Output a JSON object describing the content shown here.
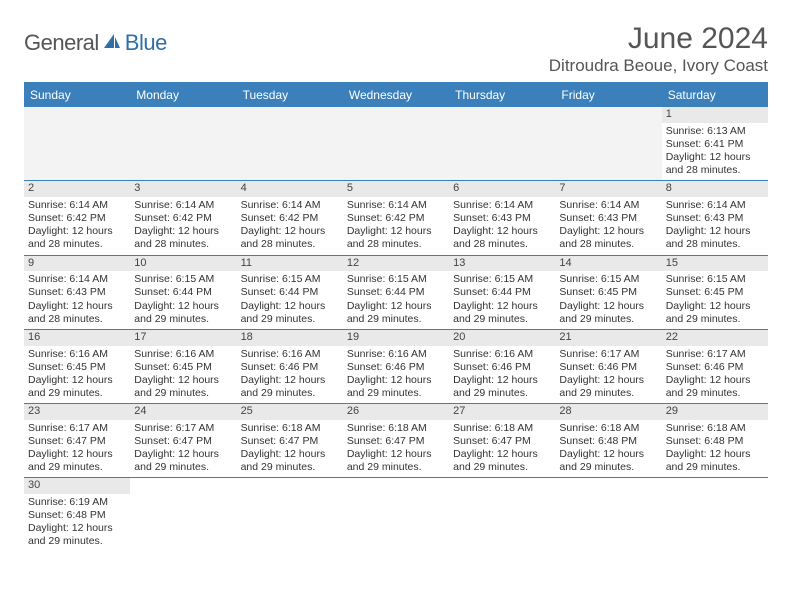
{
  "logo": {
    "part1": "General",
    "part2": "Blue"
  },
  "title": "June 2024",
  "location": "Ditroudra Beoue, Ivory Coast",
  "day_headers": [
    "Sunday",
    "Monday",
    "Tuesday",
    "Wednesday",
    "Thursday",
    "Friday",
    "Saturday"
  ],
  "colors": {
    "brand_blue": "#3b7fbb",
    "logo_blue": "#2f6fa8",
    "logo_grey": "#555555",
    "daynum_bg": "#e9e9e9",
    "blank_bg": "#f3f3f3",
    "text": "#333333"
  },
  "grid": {
    "rows": 6,
    "cols": 7,
    "first_day_index": 6,
    "days_in_month": 30
  },
  "days": {
    "1": {
      "sunrise": "6:13 AM",
      "sunset": "6:41 PM",
      "daylight": "12 hours and 28 minutes."
    },
    "2": {
      "sunrise": "6:14 AM",
      "sunset": "6:42 PM",
      "daylight": "12 hours and 28 minutes."
    },
    "3": {
      "sunrise": "6:14 AM",
      "sunset": "6:42 PM",
      "daylight": "12 hours and 28 minutes."
    },
    "4": {
      "sunrise": "6:14 AM",
      "sunset": "6:42 PM",
      "daylight": "12 hours and 28 minutes."
    },
    "5": {
      "sunrise": "6:14 AM",
      "sunset": "6:42 PM",
      "daylight": "12 hours and 28 minutes."
    },
    "6": {
      "sunrise": "6:14 AM",
      "sunset": "6:43 PM",
      "daylight": "12 hours and 28 minutes."
    },
    "7": {
      "sunrise": "6:14 AM",
      "sunset": "6:43 PM",
      "daylight": "12 hours and 28 minutes."
    },
    "8": {
      "sunrise": "6:14 AM",
      "sunset": "6:43 PM",
      "daylight": "12 hours and 28 minutes."
    },
    "9": {
      "sunrise": "6:14 AM",
      "sunset": "6:43 PM",
      "daylight": "12 hours and 28 minutes."
    },
    "10": {
      "sunrise": "6:15 AM",
      "sunset": "6:44 PM",
      "daylight": "12 hours and 29 minutes."
    },
    "11": {
      "sunrise": "6:15 AM",
      "sunset": "6:44 PM",
      "daylight": "12 hours and 29 minutes."
    },
    "12": {
      "sunrise": "6:15 AM",
      "sunset": "6:44 PM",
      "daylight": "12 hours and 29 minutes."
    },
    "13": {
      "sunrise": "6:15 AM",
      "sunset": "6:44 PM",
      "daylight": "12 hours and 29 minutes."
    },
    "14": {
      "sunrise": "6:15 AM",
      "sunset": "6:45 PM",
      "daylight": "12 hours and 29 minutes."
    },
    "15": {
      "sunrise": "6:15 AM",
      "sunset": "6:45 PM",
      "daylight": "12 hours and 29 minutes."
    },
    "16": {
      "sunrise": "6:16 AM",
      "sunset": "6:45 PM",
      "daylight": "12 hours and 29 minutes."
    },
    "17": {
      "sunrise": "6:16 AM",
      "sunset": "6:45 PM",
      "daylight": "12 hours and 29 minutes."
    },
    "18": {
      "sunrise": "6:16 AM",
      "sunset": "6:46 PM",
      "daylight": "12 hours and 29 minutes."
    },
    "19": {
      "sunrise": "6:16 AM",
      "sunset": "6:46 PM",
      "daylight": "12 hours and 29 minutes."
    },
    "20": {
      "sunrise": "6:16 AM",
      "sunset": "6:46 PM",
      "daylight": "12 hours and 29 minutes."
    },
    "21": {
      "sunrise": "6:17 AM",
      "sunset": "6:46 PM",
      "daylight": "12 hours and 29 minutes."
    },
    "22": {
      "sunrise": "6:17 AM",
      "sunset": "6:46 PM",
      "daylight": "12 hours and 29 minutes."
    },
    "23": {
      "sunrise": "6:17 AM",
      "sunset": "6:47 PM",
      "daylight": "12 hours and 29 minutes."
    },
    "24": {
      "sunrise": "6:17 AM",
      "sunset": "6:47 PM",
      "daylight": "12 hours and 29 minutes."
    },
    "25": {
      "sunrise": "6:18 AM",
      "sunset": "6:47 PM",
      "daylight": "12 hours and 29 minutes."
    },
    "26": {
      "sunrise": "6:18 AM",
      "sunset": "6:47 PM",
      "daylight": "12 hours and 29 minutes."
    },
    "27": {
      "sunrise": "6:18 AM",
      "sunset": "6:47 PM",
      "daylight": "12 hours and 29 minutes."
    },
    "28": {
      "sunrise": "6:18 AM",
      "sunset": "6:48 PM",
      "daylight": "12 hours and 29 minutes."
    },
    "29": {
      "sunrise": "6:18 AM",
      "sunset": "6:48 PM",
      "daylight": "12 hours and 29 minutes."
    },
    "30": {
      "sunrise": "6:19 AM",
      "sunset": "6:48 PM",
      "daylight": "12 hours and 29 minutes."
    }
  },
  "labels": {
    "sunrise": "Sunrise:",
    "sunset": "Sunset:",
    "daylight": "Daylight:"
  }
}
